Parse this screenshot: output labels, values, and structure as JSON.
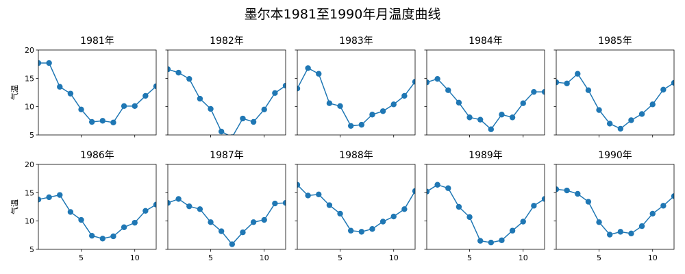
{
  "figure_title": "墨尔本1981至1990年月温度曲线",
  "chart_data": {
    "type": "line",
    "ylabel": "气温",
    "xlim": [
      1,
      12
    ],
    "ylim": [
      5,
      20
    ],
    "xticks": [
      5,
      10
    ],
    "yticks": [
      5,
      10,
      15,
      20
    ],
    "grid": false,
    "line_color": "#1f77b4",
    "marker": "circle",
    "panels": [
      {
        "title": "1981年",
        "x": [
          1,
          2,
          3,
          4,
          5,
          6,
          7,
          8,
          9,
          10,
          11,
          12
        ],
        "y": [
          17.7,
          17.7,
          13.5,
          12.3,
          9.5,
          7.3,
          7.5,
          7.2,
          10.1,
          10.1,
          11.9,
          13.6
        ]
      },
      {
        "title": "1982年",
        "x": [
          1,
          2,
          3,
          4,
          5,
          6,
          7,
          8,
          9,
          10,
          11,
          12
        ],
        "y": [
          16.6,
          16.0,
          14.9,
          11.4,
          9.6,
          5.6,
          4.6,
          7.9,
          7.3,
          9.5,
          12.4,
          13.7
        ]
      },
      {
        "title": "1983年",
        "x": [
          1,
          2,
          3,
          4,
          5,
          6,
          7,
          8,
          9,
          10,
          11,
          12
        ],
        "y": [
          13.2,
          16.8,
          15.8,
          10.6,
          10.1,
          6.6,
          6.8,
          8.6,
          9.2,
          10.4,
          11.9,
          14.4
        ]
      },
      {
        "title": "1984年",
        "x": [
          1,
          2,
          3,
          4,
          5,
          6,
          7,
          8,
          9,
          10,
          11,
          12
        ],
        "y": [
          14.3,
          14.9,
          12.9,
          10.7,
          8.1,
          7.7,
          6.0,
          8.6,
          8.1,
          10.6,
          12.6,
          12.6
        ]
      },
      {
        "title": "1985年",
        "x": [
          1,
          2,
          3,
          4,
          5,
          6,
          7,
          8,
          9,
          10,
          11,
          12
        ],
        "y": [
          14.3,
          14.1,
          15.8,
          12.9,
          9.4,
          7.0,
          6.1,
          7.6,
          8.7,
          10.4,
          13.0,
          14.2
        ]
      },
      {
        "title": "1986年",
        "x": [
          1,
          2,
          3,
          4,
          5,
          6,
          7,
          8,
          9,
          10,
          11,
          12
        ],
        "y": [
          13.8,
          14.2,
          14.6,
          11.6,
          10.2,
          7.4,
          6.9,
          7.3,
          8.9,
          9.7,
          11.8,
          12.9
        ]
      },
      {
        "title": "1987年",
        "x": [
          1,
          2,
          3,
          4,
          5,
          6,
          7,
          8,
          9,
          10,
          11,
          12
        ],
        "y": [
          13.2,
          13.9,
          12.6,
          12.1,
          9.8,
          8.2,
          5.9,
          8.0,
          9.8,
          10.2,
          13.1,
          13.2
        ]
      },
      {
        "title": "1988年",
        "x": [
          1,
          2,
          3,
          4,
          5,
          6,
          7,
          8,
          9,
          10,
          11,
          12
        ],
        "y": [
          16.4,
          14.5,
          14.7,
          12.8,
          11.3,
          8.3,
          8.1,
          8.6,
          9.9,
          10.8,
          12.1,
          15.3
        ]
      },
      {
        "title": "1989年",
        "x": [
          1,
          2,
          3,
          4,
          5,
          6,
          7,
          8,
          9,
          10,
          11,
          12
        ],
        "y": [
          15.2,
          16.4,
          15.8,
          12.5,
          10.7,
          6.5,
          6.2,
          6.6,
          8.3,
          9.9,
          12.7,
          13.9
        ]
      },
      {
        "title": "1990年",
        "x": [
          1,
          2,
          3,
          4,
          5,
          6,
          7,
          8,
          9,
          10,
          11,
          12
        ],
        "y": [
          15.6,
          15.4,
          14.8,
          13.4,
          9.8,
          7.6,
          8.1,
          7.8,
          9.1,
          11.3,
          12.7,
          14.4
        ]
      }
    ]
  }
}
